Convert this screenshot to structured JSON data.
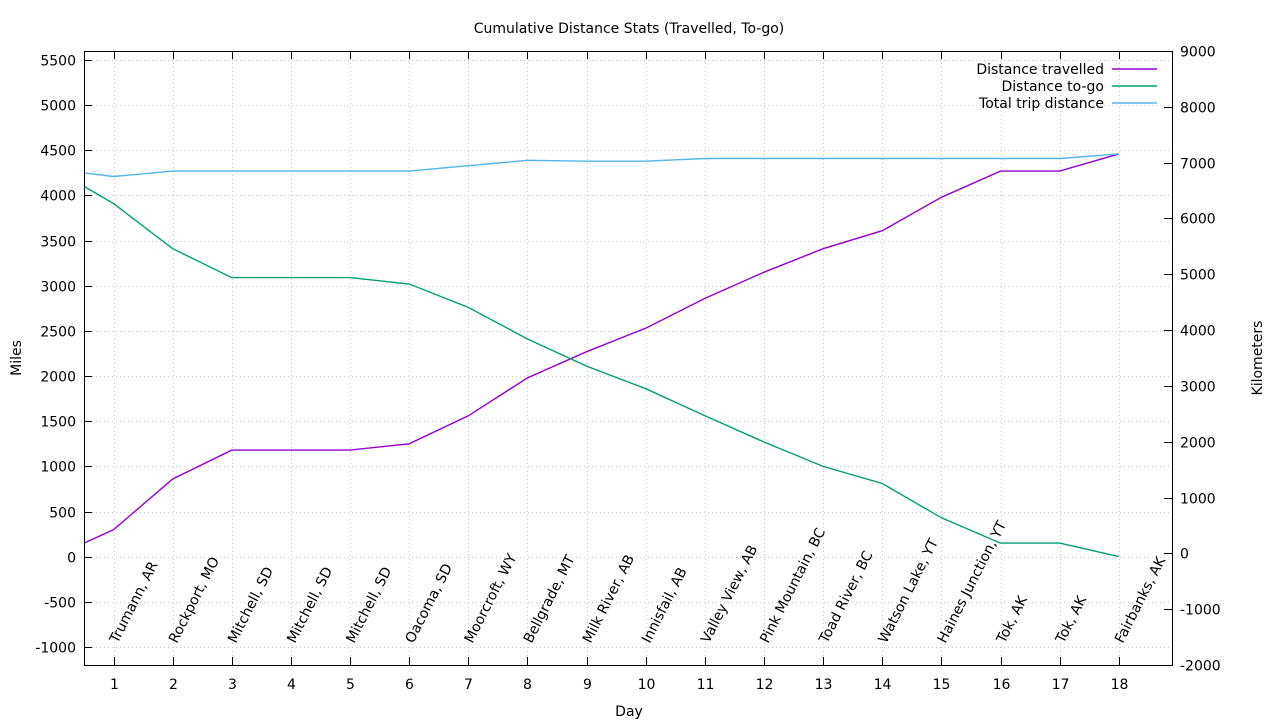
{
  "chart_data": {
    "type": "line",
    "title": "Cumulative Distance Stats (Travelled, To-go)",
    "xlabel": "Day",
    "ylabel": "Miles",
    "y2label": "Kilometers",
    "xlim": [
      0.5,
      18.9
    ],
    "ylim": [
      -1200,
      5600
    ],
    "y2lim": [
      -2000,
      9000
    ],
    "x_ticks": [
      1,
      2,
      3,
      4,
      5,
      6,
      7,
      8,
      9,
      10,
      11,
      12,
      13,
      14,
      15,
      16,
      17,
      18
    ],
    "y_ticks": [
      -1000,
      -500,
      0,
      500,
      1000,
      1500,
      2000,
      2500,
      3000,
      3500,
      4000,
      4500,
      5000,
      5500
    ],
    "y2_ticks": [
      -2000,
      -1000,
      0,
      1000,
      2000,
      3000,
      4000,
      5000,
      6000,
      7000,
      8000,
      9000
    ],
    "grid": true,
    "legend_position": "top-right",
    "location_labels": [
      {
        "x": 1,
        "text": "Trumann, AR"
      },
      {
        "x": 2,
        "text": "Rockport, MO"
      },
      {
        "x": 3,
        "text": "Mitchell, SD"
      },
      {
        "x": 4,
        "text": "Mitchell, SD"
      },
      {
        "x": 5,
        "text": "Mitchell, SD"
      },
      {
        "x": 6,
        "text": "Oacoma, SD"
      },
      {
        "x": 7,
        "text": "Moorcroft, WY"
      },
      {
        "x": 8,
        "text": "Bellgrade, MT"
      },
      {
        "x": 9,
        "text": "Milk River, AB"
      },
      {
        "x": 10,
        "text": "Innisfail, AB"
      },
      {
        "x": 11,
        "text": "Valley View, AB"
      },
      {
        "x": 12,
        "text": "Pink Mountain, BC"
      },
      {
        "x": 13,
        "text": "Toad River, BC"
      },
      {
        "x": 14,
        "text": "Watson Lake, YT"
      },
      {
        "x": 15,
        "text": "Haines Junction, YT"
      },
      {
        "x": 16,
        "text": "Tok, AK"
      },
      {
        "x": 17,
        "text": "Tok, AK"
      },
      {
        "x": 18,
        "text": "Fairbanks, AK"
      }
    ],
    "series": [
      {
        "name": "Distance travelled",
        "color": "#9400d3",
        "x": [
          0.5,
          1,
          2,
          3,
          4,
          5,
          6,
          7,
          8,
          9,
          10,
          11,
          12,
          13,
          14,
          15,
          16,
          17,
          18
        ],
        "values": [
          150,
          300,
          860,
          1180,
          1180,
          1180,
          1250,
          1560,
          1980,
          2270,
          2530,
          2860,
          3150,
          3410,
          3610,
          3980,
          4270,
          4270,
          4460
        ]
      },
      {
        "name": "Distance to-go",
        "color": "#009e73",
        "x": [
          0.5,
          1,
          2,
          3,
          4,
          5,
          6,
          7,
          8,
          9,
          10,
          11,
          12,
          13,
          14,
          15,
          16,
          17,
          18
        ],
        "values": [
          4100,
          3910,
          3410,
          3090,
          3090,
          3090,
          3020,
          2760,
          2410,
          2110,
          1860,
          1560,
          1270,
          1000,
          810,
          430,
          150,
          150,
          0
        ]
      },
      {
        "name": "Total trip distance",
        "color": "#56b4e9",
        "x": [
          0.5,
          1,
          2,
          3,
          4,
          5,
          6,
          7,
          8,
          9,
          10,
          11,
          12,
          13,
          14,
          15,
          16,
          17,
          18
        ],
        "values": [
          4250,
          4210,
          4270,
          4270,
          4270,
          4270,
          4270,
          4330,
          4390,
          4380,
          4380,
          4410,
          4410,
          4410,
          4410,
          4410,
          4410,
          4410,
          4460
        ]
      }
    ]
  }
}
